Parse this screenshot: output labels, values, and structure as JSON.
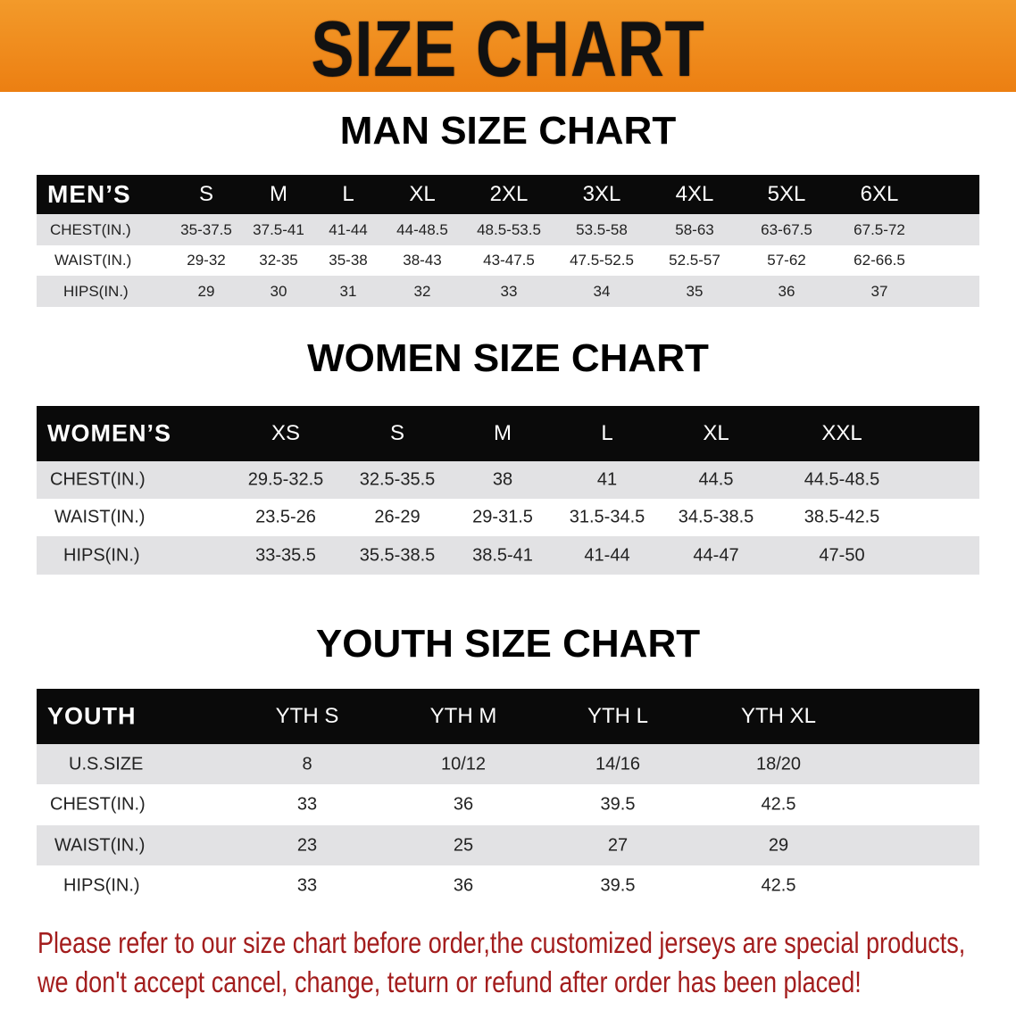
{
  "banner": {
    "title": "SIZE CHART",
    "color": "#ef8a1c"
  },
  "men": {
    "title": "MAN SIZE CHART",
    "header": "MEN’S",
    "sizes": [
      "S",
      "M",
      "L",
      "XL",
      "2XL",
      "3XL",
      "4XL",
      "5XL",
      "6XL"
    ],
    "rows": [
      {
        "label": "CHEST(IN.)",
        "values": [
          "35-37.5",
          "37.5-41",
          "41-44",
          "44-48.5",
          "48.5-53.5",
          "53.5-58",
          "58-63",
          "63-67.5",
          "67.5-72"
        ]
      },
      {
        "label": "WAIST(IN.)",
        "values": [
          "29-32",
          "32-35",
          "35-38",
          "38-43",
          "43-47.5",
          "47.5-52.5",
          "52.5-57",
          "57-62",
          "62-66.5"
        ]
      },
      {
        "label": "HIPS(IN.)",
        "values": [
          "29",
          "30",
          "31",
          "32",
          "33",
          "34",
          "35",
          "36",
          "37"
        ]
      }
    ]
  },
  "women": {
    "title": "WOMEN SIZE CHART",
    "header": "WOMEN’S",
    "sizes": [
      "XS",
      "S",
      "M",
      "L",
      "XL",
      "XXL"
    ],
    "rows": [
      {
        "label": "CHEST(IN.)",
        "values": [
          "29.5-32.5",
          "32.5-35.5",
          "38",
          "41",
          "44.5",
          "44.5-48.5"
        ]
      },
      {
        "label": "WAIST(IN.)",
        "values": [
          "23.5-26",
          "26-29",
          "29-31.5",
          "31.5-34.5",
          "34.5-38.5",
          "38.5-42.5"
        ]
      },
      {
        "label": "HIPS(IN.)",
        "values": [
          "33-35.5",
          "35.5-38.5",
          "38.5-41",
          "41-44",
          "44-47",
          "47-50"
        ]
      }
    ]
  },
  "youth": {
    "title": "YOUTH SIZE CHART",
    "header": "YOUTH",
    "sizes": [
      "YTH S",
      "YTH M",
      "YTH L",
      "YTH XL"
    ],
    "rows": [
      {
        "label": "U.S.SIZE",
        "values": [
          "8",
          "10/12",
          "14/16",
          "18/20"
        ]
      },
      {
        "label": "CHEST(IN.)",
        "values": [
          "33",
          "36",
          "39.5",
          "42.5"
        ]
      },
      {
        "label": "WAIST(IN.)",
        "values": [
          "23",
          "25",
          "27",
          "29"
        ]
      },
      {
        "label": "HIPS(IN.)",
        "values": [
          "33",
          "36",
          "39.5",
          "42.5"
        ]
      }
    ]
  },
  "note": {
    "line1": "Please refer to our size chart before order,the customized jerseys are special products,",
    "line2": "we don't accept cancel, change, teturn or refund after order has been placed!",
    "color": "#a31d1d"
  }
}
